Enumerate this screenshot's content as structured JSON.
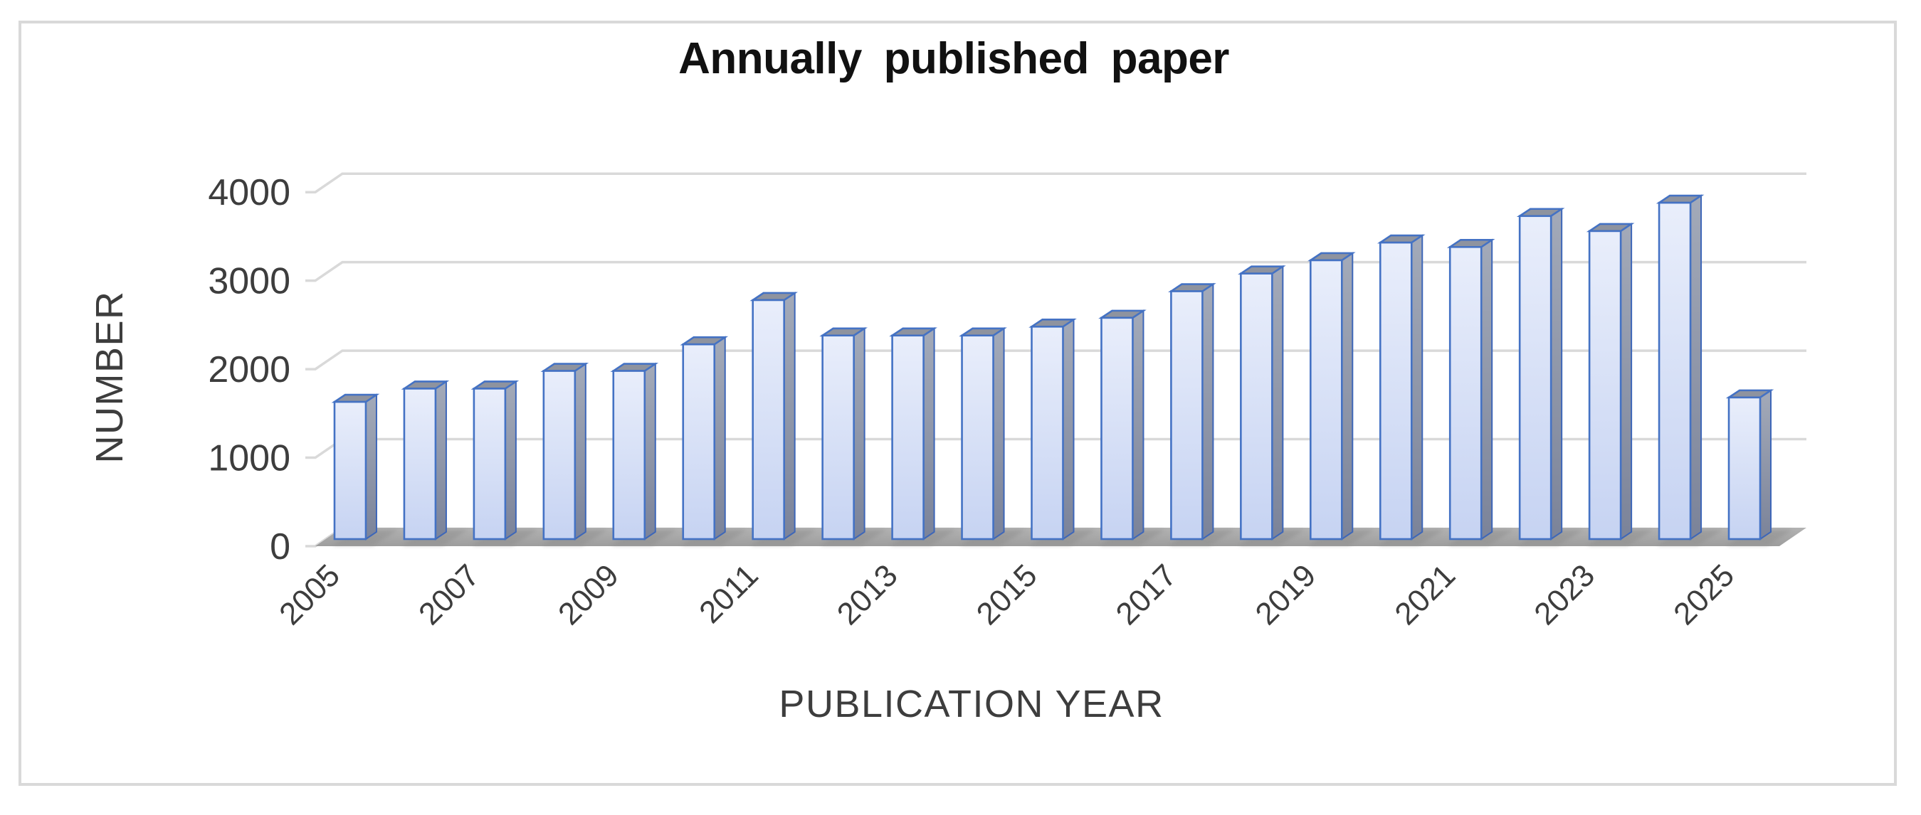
{
  "chart_data": {
    "type": "bar",
    "projection": "3d",
    "title": "Annually published paper",
    "xlabel": "PUBLICATION YEAR",
    "ylabel": "NUMBER",
    "categories": [
      "2005",
      "2006",
      "2007",
      "2008",
      "2009",
      "2010",
      "2011",
      "2012",
      "2013",
      "2014",
      "2015",
      "2016",
      "2017",
      "2018",
      "2019",
      "2020",
      "2021",
      "2022",
      "2023",
      "2024",
      "2025"
    ],
    "values": [
      1550,
      1700,
      1700,
      1900,
      1900,
      2200,
      2700,
      2300,
      2300,
      2300,
      2400,
      2500,
      2800,
      3000,
      3150,
      3350,
      3300,
      3650,
      3480,
      3800,
      1600
    ],
    "x_axis_tick_labels": [
      "2005",
      "2007",
      "2009",
      "2011",
      "2013",
      "2015",
      "2017",
      "2019",
      "2021",
      "2023",
      "2025"
    ],
    "y_ticks": [
      "0",
      "1000",
      "2000",
      "3000",
      "4000"
    ],
    "ylim": [
      0,
      4000
    ],
    "grid": true,
    "legend": "none"
  },
  "colors": {
    "background": "#ffffff",
    "frame_border": "#d9d9d9",
    "gridline": "#d9d9d9",
    "floor_top": "#b3b3b3",
    "floor_bottom": "#9d9d9d",
    "bar_shadow": "#8c8c8c",
    "bar_fill_top": "#e9eefb",
    "bar_fill_bottom": "#c6d3f2",
    "bar_border": "#4472c4",
    "bar_side_top": "#a3aab9",
    "bar_side_bottom": "#7b8399",
    "bar_top_face": "#8e939f",
    "axis_text": "#3d3d3d",
    "title_text": "#111111"
  }
}
